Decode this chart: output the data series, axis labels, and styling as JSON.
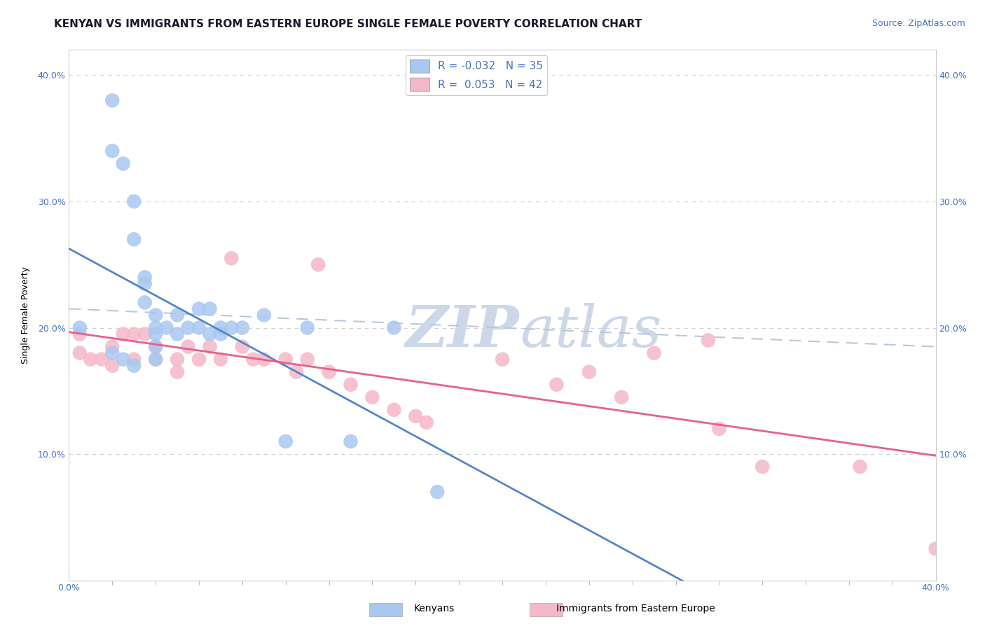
{
  "title": "KENYAN VS IMMIGRANTS FROM EASTERN EUROPE SINGLE FEMALE POVERTY CORRELATION CHART",
  "source": "Source: ZipAtlas.com",
  "ylabel": "Single Female Poverty",
  "xmin": 0.0,
  "xmax": 0.4,
  "ymin": 0.0,
  "ymax": 0.42,
  "y_ticks": [
    0.1,
    0.2,
    0.3,
    0.4
  ],
  "x_tick_labels_shown": [
    0.0,
    0.4
  ],
  "kenyan_R": -0.032,
  "kenyan_N": 35,
  "eastern_europe_R": 0.053,
  "eastern_europe_N": 42,
  "kenyan_color": "#a8c8f0",
  "eastern_europe_color": "#f5b8c8",
  "kenyan_line_color": "#5585c8",
  "eastern_europe_line_color": "#e8608a",
  "dashed_line_color": "#b8c8dc",
  "background_color": "#ffffff",
  "watermark_color": "#ccd8e8",
  "kenyan_x": [
    0.005,
    0.02,
    0.02,
    0.025,
    0.03,
    0.03,
    0.035,
    0.035,
    0.035,
    0.04,
    0.04,
    0.04,
    0.04,
    0.045,
    0.05,
    0.05,
    0.055,
    0.06,
    0.06,
    0.065,
    0.065,
    0.07,
    0.07,
    0.075,
    0.08,
    0.09,
    0.1,
    0.11,
    0.13,
    0.15,
    0.17,
    0.02,
    0.025,
    0.03,
    0.04
  ],
  "kenyan_y": [
    0.2,
    0.38,
    0.34,
    0.33,
    0.3,
    0.27,
    0.24,
    0.235,
    0.22,
    0.21,
    0.2,
    0.195,
    0.185,
    0.2,
    0.21,
    0.195,
    0.2,
    0.215,
    0.2,
    0.215,
    0.195,
    0.2,
    0.195,
    0.2,
    0.2,
    0.21,
    0.11,
    0.2,
    0.11,
    0.2,
    0.07,
    0.18,
    0.175,
    0.17,
    0.175
  ],
  "eastern_europe_x": [
    0.005,
    0.005,
    0.01,
    0.015,
    0.02,
    0.02,
    0.025,
    0.03,
    0.03,
    0.035,
    0.04,
    0.04,
    0.05,
    0.05,
    0.055,
    0.06,
    0.065,
    0.07,
    0.075,
    0.08,
    0.085,
    0.09,
    0.1,
    0.105,
    0.11,
    0.115,
    0.12,
    0.13,
    0.14,
    0.15,
    0.16,
    0.165,
    0.2,
    0.225,
    0.24,
    0.255,
    0.27,
    0.295,
    0.3,
    0.32,
    0.365,
    0.4
  ],
  "eastern_europe_y": [
    0.195,
    0.18,
    0.175,
    0.175,
    0.185,
    0.17,
    0.195,
    0.195,
    0.175,
    0.195,
    0.185,
    0.175,
    0.175,
    0.165,
    0.185,
    0.175,
    0.185,
    0.175,
    0.255,
    0.185,
    0.175,
    0.175,
    0.175,
    0.165,
    0.175,
    0.25,
    0.165,
    0.155,
    0.145,
    0.135,
    0.13,
    0.125,
    0.175,
    0.155,
    0.165,
    0.145,
    0.18,
    0.19,
    0.12,
    0.09,
    0.09,
    0.025
  ],
  "title_fontsize": 11,
  "axis_label_fontsize": 9,
  "tick_fontsize": 9,
  "legend_fontsize": 11
}
